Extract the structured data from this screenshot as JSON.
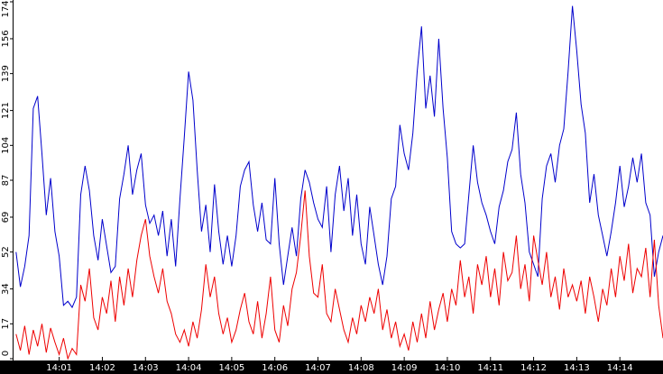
{
  "chart_data": {
    "type": "line",
    "x": [
      0,
      0.1,
      0.2,
      0.3,
      0.4,
      0.5,
      0.6,
      0.7,
      0.8,
      0.9,
      1,
      1.1,
      1.2,
      1.3,
      1.4,
      1.5,
      1.6,
      1.7,
      1.8,
      1.9,
      2,
      2.1,
      2.2,
      2.3,
      2.4,
      2.5,
      2.6,
      2.7,
      2.8,
      2.9,
      3,
      3.1,
      3.2,
      3.3,
      3.4,
      3.5,
      3.6,
      3.7,
      3.8,
      3.9,
      4,
      4.1,
      4.2,
      4.3,
      4.4,
      4.5,
      4.6,
      4.7,
      4.8,
      4.9,
      5,
      5.1,
      5.2,
      5.3,
      5.4,
      5.5,
      5.6,
      5.7,
      5.8,
      5.9,
      6,
      6.1,
      6.2,
      6.3,
      6.4,
      6.5,
      6.6,
      6.7,
      6.8,
      6.9,
      7,
      7.1,
      7.2,
      7.3,
      7.4,
      7.5,
      7.6,
      7.7,
      7.8,
      7.9,
      8,
      8.1,
      8.2,
      8.3,
      8.4,
      8.5,
      8.6,
      8.7,
      8.8,
      8.9,
      9,
      9.1,
      9.2,
      9.3,
      9.4,
      9.5,
      9.6,
      9.7,
      9.8,
      9.9,
      10,
      10.1,
      10.2,
      10.3,
      10.4,
      10.5,
      10.6,
      10.7,
      10.8,
      10.9,
      11,
      11.1,
      11.2,
      11.3,
      11.4,
      11.5,
      11.6,
      11.7,
      11.8,
      11.9,
      12,
      12.1,
      12.2,
      12.3,
      12.4,
      12.5,
      12.6,
      12.7,
      12.8,
      12.9,
      13,
      13.1,
      13.2,
      13.3,
      13.4,
      13.5,
      13.6,
      13.7,
      13.8,
      13.9,
      14,
      14.1,
      14.2,
      14.3,
      14.4,
      14.5,
      14.6,
      14.7,
      14.8,
      14.9,
      15
    ],
    "series": [
      {
        "color": "#0000cc",
        "values": [
          52,
          35,
          45,
          60,
          122,
          128,
          100,
          70,
          88,
          62,
          50,
          26,
          28,
          25,
          30,
          80,
          94,
          82,
          60,
          48,
          68,
          55,
          42,
          45,
          78,
          90,
          104,
          80,
          92,
          100,
          75,
          66,
          70,
          60,
          72,
          50,
          68,
          45,
          78,
          108,
          140,
          126,
          92,
          62,
          75,
          52,
          85,
          62,
          46,
          60,
          45,
          60,
          84,
          92,
          96,
          75,
          62,
          76,
          58,
          56,
          88,
          56,
          36,
          50,
          64,
          50,
          78,
          92,
          86,
          76,
          68,
          64,
          84,
          52,
          80,
          94,
          72,
          88,
          60,
          80,
          56,
          46,
          74,
          60,
          46,
          36,
          50,
          78,
          84,
          114,
          100,
          92,
          110,
          140,
          162,
          122,
          138,
          118,
          156,
          122,
          98,
          62,
          56,
          54,
          56,
          80,
          104,
          86,
          76,
          70,
          62,
          56,
          74,
          82,
          96,
          102,
          120,
          90,
          76,
          52,
          46,
          40,
          78,
          94,
          100,
          86,
          104,
          112,
          140,
          172,
          150,
          124,
          110,
          76,
          90,
          70,
          60,
          50,
          62,
          76,
          94,
          74,
          84,
          98,
          86,
          100,
          76,
          70,
          40,
          52,
          60
        ]
      },
      {
        "color": "#ee0000",
        "values": [
          12,
          4,
          16,
          2,
          14,
          6,
          17,
          3,
          15,
          8,
          2,
          10,
          0,
          5,
          2,
          36,
          28,
          44,
          20,
          14,
          30,
          22,
          38,
          18,
          40,
          26,
          44,
          30,
          48,
          60,
          68,
          50,
          40,
          32,
          44,
          28,
          22,
          12,
          8,
          14,
          6,
          18,
          10,
          24,
          46,
          30,
          40,
          22,
          12,
          20,
          8,
          14,
          24,
          32,
          18,
          12,
          28,
          10,
          22,
          40,
          14,
          8,
          26,
          16,
          34,
          42,
          60,
          82,
          50,
          32,
          30,
          46,
          22,
          18,
          34,
          24,
          14,
          8,
          20,
          12,
          26,
          18,
          30,
          22,
          34,
          14,
          24,
          10,
          18,
          6,
          12,
          4,
          18,
          8,
          22,
          10,
          28,
          14,
          24,
          32,
          18,
          34,
          26,
          48,
          30,
          40,
          22,
          46,
          36,
          50,
          30,
          44,
          26,
          52,
          38,
          42,
          60,
          34,
          46,
          28,
          60,
          48,
          36,
          52,
          30,
          40,
          24,
          44,
          30,
          36,
          28,
          38,
          22,
          40,
          30,
          18,
          34,
          26,
          44,
          30,
          50,
          38,
          56,
          32,
          44,
          40,
          54,
          30,
          58,
          26,
          10
        ]
      }
    ],
    "xlim": [
      -0.08,
      15
    ],
    "xticks": [
      {
        "value": 1,
        "label": "14:01"
      },
      {
        "value": 2,
        "label": "14:02"
      },
      {
        "value": 3,
        "label": "14:03"
      },
      {
        "value": 4,
        "label": "14:04"
      },
      {
        "value": 5,
        "label": "14:05"
      },
      {
        "value": 6,
        "label": "14:06"
      },
      {
        "value": 7,
        "label": "14:07"
      },
      {
        "value": 8,
        "label": "14:08"
      },
      {
        "value": 9,
        "label": "14:09"
      },
      {
        "value": 10,
        "label": "14:10"
      },
      {
        "value": 11,
        "label": "14:11"
      },
      {
        "value": 12,
        "label": "14:12"
      },
      {
        "value": 13,
        "label": "14:13"
      },
      {
        "value": 14,
        "label": "14:14"
      }
    ],
    "ylim": [
      0,
      174
    ],
    "yticks": [
      0,
      17,
      34,
      52,
      69,
      87,
      104,
      121,
      139,
      156,
      174
    ]
  }
}
